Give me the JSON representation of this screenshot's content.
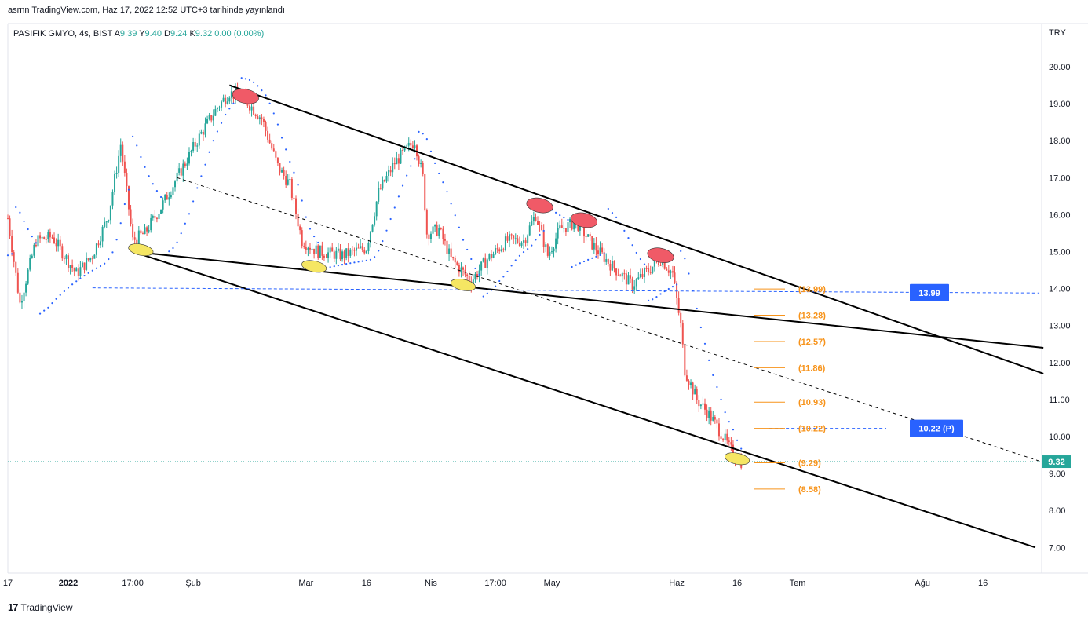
{
  "header": {
    "publish_line": "asrnn TradingView.com, Haz 17, 2022 12:52 UTC+3 tarihinde yayınlandı"
  },
  "legend": {
    "symbol": "PASIFIK GMYO, 4s, BIST",
    "o_label": "A",
    "o_value": "9.39",
    "h_label": "Y",
    "h_value": "9.40",
    "l_label": "D",
    "l_value": "9.24",
    "c_label": "K",
    "c_value": "9.32",
    "change": "0.00 (0.00%)"
  },
  "footer": {
    "brand": "TradingView",
    "logo_icon": "tradingview-logo-icon"
  },
  "colors": {
    "up": "#26a69a",
    "down": "#ef5350",
    "sar": "#2962ff",
    "fib": "#f7931a",
    "label_blue": "#2962ff",
    "price_badge": "#26a69a",
    "trendline": "#000000",
    "marker_red": "#f05a67",
    "marker_yellow": "#f5e663"
  },
  "chart_data": {
    "type": "candlestick",
    "currency": "TRY",
    "ylim": [
      6.45,
      21.2
    ],
    "y_ticks": [
      "20.00",
      "19.00",
      "18.00",
      "17.00",
      "16.00",
      "15.00",
      "14.00",
      "13.00",
      "12.00",
      "11.00",
      "10.00",
      "9.00",
      "8.00",
      "7.00"
    ],
    "x_ticks": [
      {
        "label": "17",
        "date": "2021-12-17"
      },
      {
        "label": "2022",
        "date": "2022-01-01"
      },
      {
        "label": "17:00",
        "date": "2022-01-17"
      },
      {
        "label": "Şub",
        "date": "2022-02-01"
      },
      {
        "label": "Mar",
        "date": "2022-03-01"
      },
      {
        "label": "16",
        "date": "2022-03-16"
      },
      {
        "label": "Nis",
        "date": "2022-04-01"
      },
      {
        "label": "17:00",
        "date": "2022-04-17"
      },
      {
        "label": "May",
        "date": "2022-05-01"
      },
      {
        "label": "Haz",
        "date": "2022-06-01"
      },
      {
        "label": "16",
        "date": "2022-06-16"
      },
      {
        "label": "Tem",
        "date": "2022-07-01"
      },
      {
        "label": "Ağu",
        "date": "2022-08-01"
      },
      {
        "label": "16",
        "date": "2022-08-16"
      }
    ],
    "price_path": [
      {
        "date": "2021-12-17",
        "close": 15.9
      },
      {
        "date": "2021-12-20",
        "close": 13.6
      },
      {
        "date": "2021-12-24",
        "close": 15.3
      },
      {
        "date": "2021-12-28",
        "close": 15.4
      },
      {
        "date": "2022-01-03",
        "close": 14.4
      },
      {
        "date": "2022-01-07",
        "close": 14.9
      },
      {
        "date": "2022-01-11",
        "close": 16.0
      },
      {
        "date": "2022-01-14",
        "close": 17.9
      },
      {
        "date": "2022-01-17",
        "close": 15.3
      },
      {
        "date": "2022-01-20",
        "close": 15.5
      },
      {
        "date": "2022-01-24",
        "close": 16.2
      },
      {
        "date": "2022-01-28",
        "close": 17.0
      },
      {
        "date": "2022-02-03",
        "close": 18.2
      },
      {
        "date": "2022-02-07",
        "close": 18.9
      },
      {
        "date": "2022-02-10",
        "close": 19.3
      },
      {
        "date": "2022-02-14",
        "close": 19.1
      },
      {
        "date": "2022-02-18",
        "close": 18.6
      },
      {
        "date": "2022-02-22",
        "close": 17.3
      },
      {
        "date": "2022-02-25",
        "close": 16.8
      },
      {
        "date": "2022-02-28",
        "close": 15.3
      },
      {
        "date": "2022-03-04",
        "close": 15.0
      },
      {
        "date": "2022-03-10",
        "close": 14.9
      },
      {
        "date": "2022-03-16",
        "close": 15.1
      },
      {
        "date": "2022-03-19",
        "close": 16.6
      },
      {
        "date": "2022-03-23",
        "close": 17.4
      },
      {
        "date": "2022-03-28",
        "close": 18.0
      },
      {
        "date": "2022-03-30",
        "close": 17.0
      },
      {
        "date": "2022-03-31",
        "close": 15.5
      },
      {
        "date": "2022-04-03",
        "close": 15.6
      },
      {
        "date": "2022-04-06",
        "close": 14.8
      },
      {
        "date": "2022-04-11",
        "close": 14.2
      },
      {
        "date": "2022-04-15",
        "close": 14.8
      },
      {
        "date": "2022-04-20",
        "close": 15.3
      },
      {
        "date": "2022-04-24",
        "close": 15.3
      },
      {
        "date": "2022-04-27",
        "close": 16.0
      },
      {
        "date": "2022-04-30",
        "close": 14.9
      },
      {
        "date": "2022-05-03",
        "close": 15.6
      },
      {
        "date": "2022-05-07",
        "close": 15.8
      },
      {
        "date": "2022-05-11",
        "close": 15.2
      },
      {
        "date": "2022-05-16",
        "close": 14.6
      },
      {
        "date": "2022-05-21",
        "close": 14.1
      },
      {
        "date": "2022-05-25",
        "close": 14.5
      },
      {
        "date": "2022-05-28",
        "close": 14.8
      },
      {
        "date": "2022-05-31",
        "close": 14.4
      },
      {
        "date": "2022-06-02",
        "close": 13.0
      },
      {
        "date": "2022-06-03",
        "close": 11.8
      },
      {
        "date": "2022-06-06",
        "close": 11.0
      },
      {
        "date": "2022-06-09",
        "close": 10.6
      },
      {
        "date": "2022-06-12",
        "close": 10.1
      },
      {
        "date": "2022-06-14",
        "close": 9.7
      },
      {
        "date": "2022-06-16",
        "close": 9.4
      },
      {
        "date": "2022-06-17",
        "close": 9.32
      }
    ],
    "trendlines": [
      {
        "name": "upper-channel-line",
        "start": {
          "date": "2022-02-10",
          "price": 19.5
        },
        "end": {
          "date": "2022-08-31",
          "price": 11.7
        }
      },
      {
        "name": "lower-channel-line",
        "start": {
          "date": "2022-01-17",
          "price": 15.0
        },
        "end": {
          "date": "2022-08-29",
          "price": 7.0
        }
      },
      {
        "name": "support-line",
        "start": {
          "date": "2022-01-17",
          "price": 15.0
        },
        "end": {
          "date": "2022-08-31",
          "price": 12.4
        }
      },
      {
        "name": "dashed-mid-line",
        "start": {
          "date": "2022-01-28",
          "price": 17.0
        },
        "end": {
          "date": "2022-08-31",
          "price": 9.3
        },
        "dashed": true
      },
      {
        "name": "horizontal-support-line",
        "start": {
          "date": "2022-01-07",
          "price": 14.02
        },
        "end": {
          "date": "2022-08-30",
          "price": 13.88
        },
        "dashed": true,
        "blue": true
      },
      {
        "name": "pivot-line",
        "start": {
          "date": "2022-06-24",
          "price": 10.22
        },
        "end": {
          "date": "2022-07-23",
          "price": 10.22
        },
        "dashed": true,
        "blue": true
      }
    ],
    "markers": [
      {
        "kind": "red",
        "date": "2022-02-14",
        "price": 19.2
      },
      {
        "kind": "red",
        "date": "2022-04-28",
        "price": 16.25
      },
      {
        "kind": "red",
        "date": "2022-05-09",
        "price": 15.85
      },
      {
        "kind": "red",
        "date": "2022-05-28",
        "price": 14.9
      },
      {
        "kind": "yellow",
        "date": "2022-01-19",
        "price": 15.05
      },
      {
        "kind": "yellow",
        "date": "2022-03-03",
        "price": 14.6
      },
      {
        "kind": "yellow",
        "date": "2022-04-09",
        "price": 14.1
      },
      {
        "kind": "yellow",
        "date": "2022-06-16",
        "price": 9.4
      }
    ],
    "fib_levels": [
      {
        "label": "(13.99)",
        "price": 13.99
      },
      {
        "label": "(13.28)",
        "price": 13.28
      },
      {
        "label": "(12.57)",
        "price": 12.57
      },
      {
        "label": "(11.86)",
        "price": 11.86
      },
      {
        "label": "(10.93)",
        "price": 10.93
      },
      {
        "label": "(10.22)",
        "price": 10.22
      },
      {
        "label": "(9.29)",
        "price": 9.29
      },
      {
        "label": "(8.58)",
        "price": 8.58
      }
    ],
    "labels": [
      {
        "text": "13.99",
        "price": 13.89,
        "date": "2022-07-27"
      },
      {
        "text": "10.22 (P)",
        "price": 10.22,
        "date": "2022-07-27"
      }
    ],
    "last_price": {
      "text": "9.32",
      "value": 9.32
    }
  }
}
